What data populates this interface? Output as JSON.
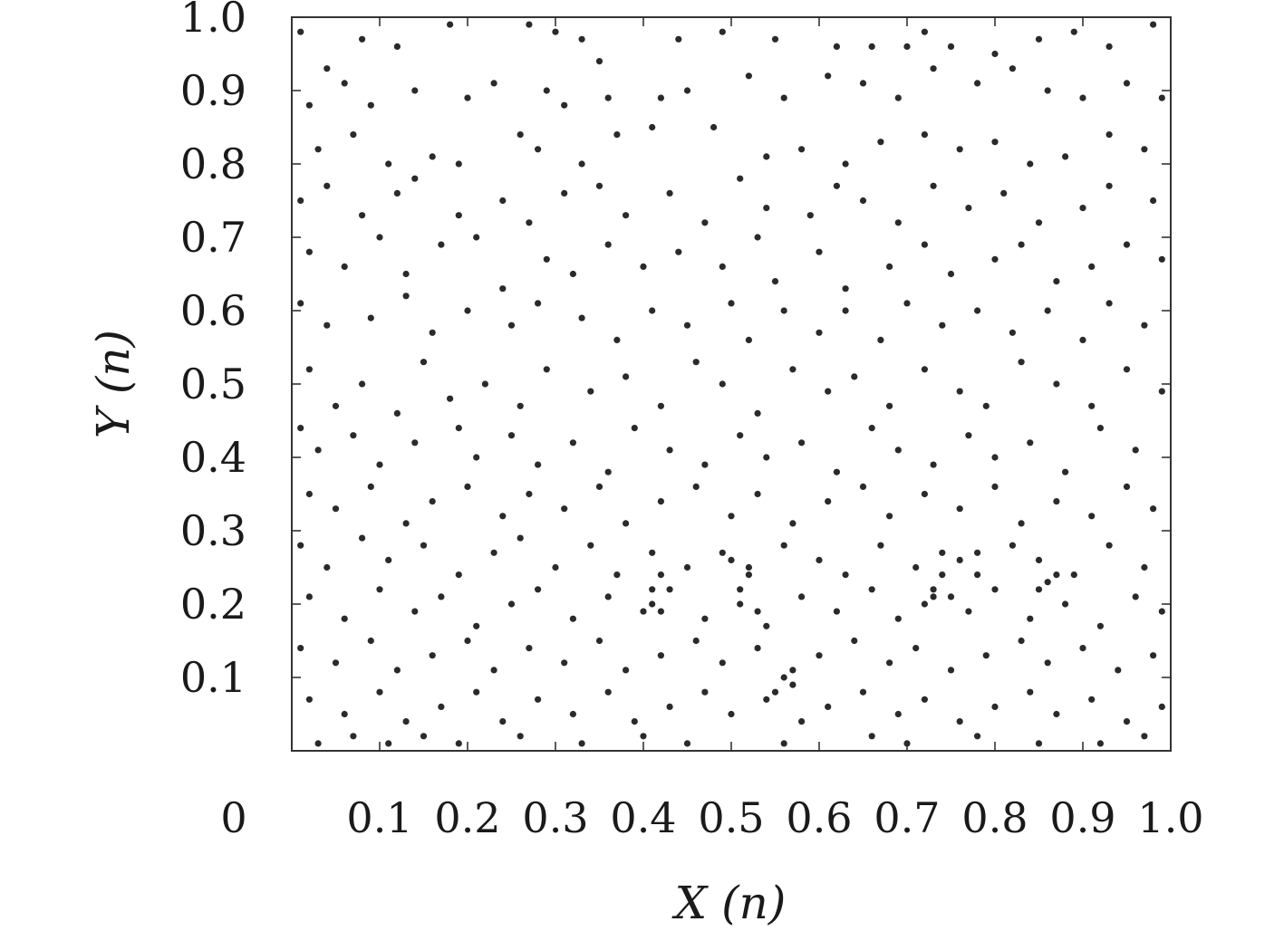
{
  "chart_data": {
    "type": "scatter",
    "xlabel": "X (n)",
    "ylabel": "Y (n)",
    "xlim": [
      0,
      1.0
    ],
    "ylim": [
      0,
      1.0
    ],
    "origin_label": "0",
    "x_ticks": [
      "0.1",
      "0.2",
      "0.3",
      "0.4",
      "0.5",
      "0.6",
      "0.7",
      "0.8",
      "0.9",
      "1.0"
    ],
    "y_ticks": [
      "0.1",
      "0.2",
      "0.3",
      "0.4",
      "0.5",
      "0.6",
      "0.7",
      "0.8",
      "0.9",
      "1.0"
    ],
    "x_tick_values": [
      0.1,
      0.2,
      0.3,
      0.4,
      0.5,
      0.6,
      0.7,
      0.8,
      0.9,
      1.0
    ],
    "y_tick_values": [
      0.1,
      0.2,
      0.3,
      0.4,
      0.5,
      0.6,
      0.7,
      0.8,
      0.9,
      1.0
    ],
    "grid": false,
    "legend": "none",
    "point_color": "#2a2a2a",
    "points": [
      [
        0.01,
        0.98
      ],
      [
        0.04,
        0.93
      ],
      [
        0.08,
        0.97
      ],
      [
        0.12,
        0.96
      ],
      [
        0.18,
        0.99
      ],
      [
        0.27,
        0.99
      ],
      [
        0.3,
        0.98
      ],
      [
        0.33,
        0.97
      ],
      [
        0.35,
        0.94
      ],
      [
        0.44,
        0.97
      ],
      [
        0.49,
        0.98
      ],
      [
        0.55,
        0.97
      ],
      [
        0.62,
        0.96
      ],
      [
        0.66,
        0.96
      ],
      [
        0.7,
        0.96
      ],
      [
        0.72,
        0.98
      ],
      [
        0.75,
        0.96
      ],
      [
        0.8,
        0.95
      ],
      [
        0.85,
        0.97
      ],
      [
        0.89,
        0.98
      ],
      [
        0.93,
        0.96
      ],
      [
        0.98,
        0.99
      ],
      [
        0.02,
        0.88
      ],
      [
        0.06,
        0.91
      ],
      [
        0.09,
        0.88
      ],
      [
        0.14,
        0.9
      ],
      [
        0.2,
        0.89
      ],
      [
        0.23,
        0.91
      ],
      [
        0.29,
        0.9
      ],
      [
        0.31,
        0.88
      ],
      [
        0.36,
        0.89
      ],
      [
        0.42,
        0.89
      ],
      [
        0.45,
        0.9
      ],
      [
        0.52,
        0.92
      ],
      [
        0.56,
        0.89
      ],
      [
        0.61,
        0.92
      ],
      [
        0.65,
        0.91
      ],
      [
        0.69,
        0.89
      ],
      [
        0.73,
        0.93
      ],
      [
        0.78,
        0.91
      ],
      [
        0.82,
        0.93
      ],
      [
        0.86,
        0.9
      ],
      [
        0.9,
        0.89
      ],
      [
        0.95,
        0.91
      ],
      [
        0.99,
        0.89
      ],
      [
        0.03,
        0.82
      ],
      [
        0.07,
        0.84
      ],
      [
        0.11,
        0.8
      ],
      [
        0.16,
        0.81
      ],
      [
        0.19,
        0.8
      ],
      [
        0.26,
        0.84
      ],
      [
        0.28,
        0.82
      ],
      [
        0.33,
        0.8
      ],
      [
        0.37,
        0.84
      ],
      [
        0.41,
        0.85
      ],
      [
        0.48,
        0.85
      ],
      [
        0.54,
        0.81
      ],
      [
        0.58,
        0.82
      ],
      [
        0.63,
        0.8
      ],
      [
        0.67,
        0.83
      ],
      [
        0.72,
        0.84
      ],
      [
        0.76,
        0.82
      ],
      [
        0.8,
        0.83
      ],
      [
        0.84,
        0.8
      ],
      [
        0.88,
        0.81
      ],
      [
        0.93,
        0.84
      ],
      [
        0.97,
        0.82
      ],
      [
        0.01,
        0.75
      ],
      [
        0.04,
        0.77
      ],
      [
        0.08,
        0.73
      ],
      [
        0.12,
        0.76
      ],
      [
        0.14,
        0.78
      ],
      [
        0.19,
        0.73
      ],
      [
        0.24,
        0.75
      ],
      [
        0.27,
        0.72
      ],
      [
        0.31,
        0.76
      ],
      [
        0.35,
        0.77
      ],
      [
        0.38,
        0.73
      ],
      [
        0.43,
        0.76
      ],
      [
        0.47,
        0.72
      ],
      [
        0.51,
        0.78
      ],
      [
        0.54,
        0.74
      ],
      [
        0.59,
        0.73
      ],
      [
        0.62,
        0.77
      ],
      [
        0.65,
        0.75
      ],
      [
        0.69,
        0.72
      ],
      [
        0.73,
        0.77
      ],
      [
        0.77,
        0.74
      ],
      [
        0.81,
        0.76
      ],
      [
        0.85,
        0.72
      ],
      [
        0.9,
        0.74
      ],
      [
        0.93,
        0.77
      ],
      [
        0.98,
        0.75
      ],
      [
        0.02,
        0.68
      ],
      [
        0.06,
        0.66
      ],
      [
        0.1,
        0.7
      ],
      [
        0.13,
        0.65
      ],
      [
        0.17,
        0.69
      ],
      [
        0.21,
        0.7
      ],
      [
        0.24,
        0.63
      ],
      [
        0.29,
        0.67
      ],
      [
        0.32,
        0.65
      ],
      [
        0.36,
        0.69
      ],
      [
        0.4,
        0.66
      ],
      [
        0.44,
        0.68
      ],
      [
        0.49,
        0.66
      ],
      [
        0.53,
        0.7
      ],
      [
        0.55,
        0.64
      ],
      [
        0.6,
        0.68
      ],
      [
        0.63,
        0.63
      ],
      [
        0.68,
        0.66
      ],
      [
        0.72,
        0.69
      ],
      [
        0.75,
        0.65
      ],
      [
        0.8,
        0.67
      ],
      [
        0.83,
        0.69
      ],
      [
        0.87,
        0.64
      ],
      [
        0.91,
        0.66
      ],
      [
        0.95,
        0.69
      ],
      [
        0.99,
        0.67
      ],
      [
        0.01,
        0.61
      ],
      [
        0.04,
        0.58
      ],
      [
        0.09,
        0.59
      ],
      [
        0.13,
        0.62
      ],
      [
        0.16,
        0.57
      ],
      [
        0.2,
        0.6
      ],
      [
        0.25,
        0.58
      ],
      [
        0.28,
        0.61
      ],
      [
        0.33,
        0.59
      ],
      [
        0.37,
        0.56
      ],
      [
        0.41,
        0.6
      ],
      [
        0.45,
        0.58
      ],
      [
        0.5,
        0.61
      ],
      [
        0.52,
        0.56
      ],
      [
        0.56,
        0.6
      ],
      [
        0.6,
        0.57
      ],
      [
        0.63,
        0.6
      ],
      [
        0.67,
        0.56
      ],
      [
        0.7,
        0.61
      ],
      [
        0.74,
        0.58
      ],
      [
        0.78,
        0.6
      ],
      [
        0.82,
        0.57
      ],
      [
        0.86,
        0.6
      ],
      [
        0.9,
        0.56
      ],
      [
        0.93,
        0.61
      ],
      [
        0.97,
        0.58
      ],
      [
        0.02,
        0.52
      ],
      [
        0.05,
        0.47
      ],
      [
        0.08,
        0.5
      ],
      [
        0.12,
        0.46
      ],
      [
        0.15,
        0.53
      ],
      [
        0.18,
        0.48
      ],
      [
        0.22,
        0.5
      ],
      [
        0.26,
        0.47
      ],
      [
        0.29,
        0.52
      ],
      [
        0.34,
        0.49
      ],
      [
        0.38,
        0.51
      ],
      [
        0.42,
        0.47
      ],
      [
        0.46,
        0.53
      ],
      [
        0.49,
        0.5
      ],
      [
        0.53,
        0.46
      ],
      [
        0.57,
        0.52
      ],
      [
        0.61,
        0.49
      ],
      [
        0.64,
        0.51
      ],
      [
        0.68,
        0.47
      ],
      [
        0.72,
        0.52
      ],
      [
        0.76,
        0.49
      ],
      [
        0.79,
        0.47
      ],
      [
        0.83,
        0.53
      ],
      [
        0.87,
        0.5
      ],
      [
        0.91,
        0.47
      ],
      [
        0.95,
        0.52
      ],
      [
        0.99,
        0.49
      ],
      [
        0.01,
        0.44
      ],
      [
        0.03,
        0.41
      ],
      [
        0.07,
        0.43
      ],
      [
        0.1,
        0.39
      ],
      [
        0.14,
        0.42
      ],
      [
        0.19,
        0.44
      ],
      [
        0.21,
        0.4
      ],
      [
        0.25,
        0.43
      ],
      [
        0.28,
        0.39
      ],
      [
        0.32,
        0.42
      ],
      [
        0.36,
        0.38
      ],
      [
        0.39,
        0.44
      ],
      [
        0.43,
        0.41
      ],
      [
        0.47,
        0.39
      ],
      [
        0.51,
        0.43
      ],
      [
        0.54,
        0.4
      ],
      [
        0.58,
        0.42
      ],
      [
        0.62,
        0.38
      ],
      [
        0.66,
        0.44
      ],
      [
        0.69,
        0.41
      ],
      [
        0.73,
        0.39
      ],
      [
        0.77,
        0.43
      ],
      [
        0.8,
        0.4
      ],
      [
        0.84,
        0.42
      ],
      [
        0.88,
        0.38
      ],
      [
        0.92,
        0.44
      ],
      [
        0.96,
        0.41
      ],
      [
        0.02,
        0.35
      ],
      [
        0.05,
        0.33
      ],
      [
        0.09,
        0.36
      ],
      [
        0.13,
        0.31
      ],
      [
        0.16,
        0.34
      ],
      [
        0.2,
        0.36
      ],
      [
        0.24,
        0.32
      ],
      [
        0.27,
        0.35
      ],
      [
        0.31,
        0.33
      ],
      [
        0.35,
        0.36
      ],
      [
        0.38,
        0.31
      ],
      [
        0.42,
        0.34
      ],
      [
        0.46,
        0.36
      ],
      [
        0.5,
        0.32
      ],
      [
        0.53,
        0.35
      ],
      [
        0.57,
        0.31
      ],
      [
        0.61,
        0.34
      ],
      [
        0.65,
        0.36
      ],
      [
        0.68,
        0.32
      ],
      [
        0.72,
        0.35
      ],
      [
        0.76,
        0.33
      ],
      [
        0.8,
        0.36
      ],
      [
        0.83,
        0.31
      ],
      [
        0.87,
        0.34
      ],
      [
        0.91,
        0.32
      ],
      [
        0.95,
        0.36
      ],
      [
        0.98,
        0.33
      ],
      [
        0.01,
        0.28
      ],
      [
        0.04,
        0.25
      ],
      [
        0.08,
        0.29
      ],
      [
        0.11,
        0.26
      ],
      [
        0.15,
        0.28
      ],
      [
        0.19,
        0.24
      ],
      [
        0.23,
        0.27
      ],
      [
        0.26,
        0.29
      ],
      [
        0.3,
        0.25
      ],
      [
        0.34,
        0.28
      ],
      [
        0.37,
        0.24
      ],
      [
        0.41,
        0.27
      ],
      [
        0.45,
        0.25
      ],
      [
        0.49,
        0.27
      ],
      [
        0.52,
        0.24
      ],
      [
        0.56,
        0.28
      ],
      [
        0.6,
        0.26
      ],
      [
        0.63,
        0.24
      ],
      [
        0.67,
        0.28
      ],
      [
        0.71,
        0.25
      ],
      [
        0.74,
        0.27
      ],
      [
        0.78,
        0.24
      ],
      [
        0.82,
        0.28
      ],
      [
        0.85,
        0.26
      ],
      [
        0.89,
        0.24
      ],
      [
        0.93,
        0.28
      ],
      [
        0.97,
        0.25
      ],
      [
        0.02,
        0.21
      ],
      [
        0.06,
        0.18
      ],
      [
        0.1,
        0.22
      ],
      [
        0.14,
        0.19
      ],
      [
        0.17,
        0.21
      ],
      [
        0.21,
        0.17
      ],
      [
        0.25,
        0.2
      ],
      [
        0.28,
        0.22
      ],
      [
        0.32,
        0.18
      ],
      [
        0.36,
        0.21
      ],
      [
        0.4,
        0.19
      ],
      [
        0.43,
        0.22
      ],
      [
        0.47,
        0.18
      ],
      [
        0.51,
        0.2
      ],
      [
        0.54,
        0.17
      ],
      [
        0.58,
        0.21
      ],
      [
        0.62,
        0.19
      ],
      [
        0.66,
        0.22
      ],
      [
        0.69,
        0.18
      ],
      [
        0.73,
        0.21
      ],
      [
        0.77,
        0.19
      ],
      [
        0.8,
        0.22
      ],
      [
        0.84,
        0.18
      ],
      [
        0.88,
        0.2
      ],
      [
        0.92,
        0.17
      ],
      [
        0.96,
        0.21
      ],
      [
        0.99,
        0.19
      ],
      [
        0.01,
        0.14
      ],
      [
        0.05,
        0.12
      ],
      [
        0.09,
        0.15
      ],
      [
        0.12,
        0.11
      ],
      [
        0.16,
        0.13
      ],
      [
        0.2,
        0.15
      ],
      [
        0.23,
        0.11
      ],
      [
        0.27,
        0.14
      ],
      [
        0.31,
        0.12
      ],
      [
        0.35,
        0.15
      ],
      [
        0.38,
        0.11
      ],
      [
        0.42,
        0.13
      ],
      [
        0.46,
        0.15
      ],
      [
        0.49,
        0.12
      ],
      [
        0.53,
        0.14
      ],
      [
        0.57,
        0.11
      ],
      [
        0.6,
        0.13
      ],
      [
        0.64,
        0.15
      ],
      [
        0.68,
        0.12
      ],
      [
        0.71,
        0.14
      ],
      [
        0.75,
        0.11
      ],
      [
        0.79,
        0.13
      ],
      [
        0.83,
        0.15
      ],
      [
        0.86,
        0.12
      ],
      [
        0.9,
        0.14
      ],
      [
        0.94,
        0.11
      ],
      [
        0.98,
        0.13
      ],
      [
        0.02,
        0.07
      ],
      [
        0.06,
        0.05
      ],
      [
        0.1,
        0.08
      ],
      [
        0.13,
        0.04
      ],
      [
        0.17,
        0.06
      ],
      [
        0.21,
        0.08
      ],
      [
        0.24,
        0.04
      ],
      [
        0.28,
        0.07
      ],
      [
        0.32,
        0.05
      ],
      [
        0.36,
        0.08
      ],
      [
        0.39,
        0.04
      ],
      [
        0.43,
        0.06
      ],
      [
        0.47,
        0.08
      ],
      [
        0.5,
        0.05
      ],
      [
        0.54,
        0.07
      ],
      [
        0.58,
        0.04
      ],
      [
        0.61,
        0.06
      ],
      [
        0.65,
        0.08
      ],
      [
        0.69,
        0.05
      ],
      [
        0.72,
        0.07
      ],
      [
        0.76,
        0.04
      ],
      [
        0.8,
        0.06
      ],
      [
        0.84,
        0.08
      ],
      [
        0.87,
        0.05
      ],
      [
        0.91,
        0.07
      ],
      [
        0.95,
        0.04
      ],
      [
        0.99,
        0.06
      ],
      [
        0.03,
        0.01
      ],
      [
        0.07,
        0.02
      ],
      [
        0.11,
        0.01
      ],
      [
        0.15,
        0.02
      ],
      [
        0.19,
        0.01
      ],
      [
        0.26,
        0.02
      ],
      [
        0.33,
        0.01
      ],
      [
        0.4,
        0.02
      ],
      [
        0.45,
        0.01
      ],
      [
        0.56,
        0.01
      ],
      [
        0.66,
        0.02
      ],
      [
        0.7,
        0.01
      ],
      [
        0.78,
        0.02
      ],
      [
        0.85,
        0.01
      ],
      [
        0.92,
        0.01
      ],
      [
        0.97,
        0.02
      ],
      [
        0.74,
        0.24
      ],
      [
        0.73,
        0.22
      ],
      [
        0.75,
        0.21
      ],
      [
        0.76,
        0.26
      ],
      [
        0.78,
        0.27
      ],
      [
        0.72,
        0.2
      ],
      [
        0.52,
        0.25
      ],
      [
        0.5,
        0.26
      ],
      [
        0.51,
        0.22
      ],
      [
        0.53,
        0.19
      ],
      [
        0.42,
        0.24
      ],
      [
        0.41,
        0.22
      ],
      [
        0.41,
        0.2
      ],
      [
        0.42,
        0.19
      ],
      [
        0.86,
        0.23
      ],
      [
        0.87,
        0.24
      ],
      [
        0.85,
        0.22
      ],
      [
        0.56,
        0.1
      ],
      [
        0.57,
        0.09
      ],
      [
        0.55,
        0.08
      ]
    ]
  }
}
